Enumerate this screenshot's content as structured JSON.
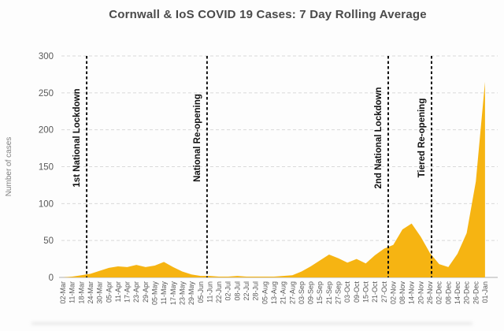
{
  "title": "Cornwall & IoS COVID 19 Cases: 7 Day Rolling Average",
  "colors": {
    "area": "#F6B412",
    "grid": "#D9D9D9",
    "axis": "#BFBFBF",
    "tick_text": "#595959",
    "axis_label_text": "#808080",
    "annotation": "#111111",
    "title_text": "#4A4A4A",
    "background": "#FDFDFD"
  },
  "chart_data": {
    "type": "area",
    "title": "Cornwall & IoS COVID 19 Cases: 7 Day Rolling Average",
    "xlabel": "",
    "ylabel": "Number of cases",
    "ylim": [
      0,
      300
    ],
    "yticks": [
      0,
      50,
      100,
      150,
      200,
      250,
      300
    ],
    "grid": "horizontal dashed gridlines at every 50",
    "legend": "none",
    "categories": [
      "02-Mar",
      "11-Mar",
      "18-Mar",
      "24-Mar",
      "30-Mar",
      "05-Apr",
      "11-Apr",
      "17-Apr",
      "23-Apr",
      "29-Apr",
      "05-May",
      "11-May",
      "17-May",
      "23-May",
      "29-May",
      "05-Jun",
      "11-Jun",
      "22-Jun",
      "02-Jul",
      "08-Jul",
      "22-Jul",
      "28-Jul",
      "05-Aug",
      "13-Aug",
      "21-Aug",
      "27-Aug",
      "03-Sep",
      "09-Sep",
      "15-Sep",
      "21-Sep",
      "27-Sep",
      "03-Oct",
      "09-Oct",
      "15-Oct",
      "21-Oct",
      "27-Oct",
      "02-Nov",
      "08-Nov",
      "14-Nov",
      "20-Nov",
      "26-Nov",
      "02-Dec",
      "08-Dec",
      "14-Dec",
      "20-Dec",
      "26-Dec",
      "01-Jan"
    ],
    "values": [
      0,
      1,
      3,
      5,
      9,
      13,
      15,
      14,
      17,
      14,
      16,
      21,
      14,
      8,
      4,
      2,
      2,
      1,
      1,
      2,
      1,
      1,
      1,
      1,
      2,
      3,
      8,
      15,
      23,
      31,
      26,
      20,
      25,
      19,
      30,
      39,
      44,
      65,
      73,
      55,
      33,
      18,
      14,
      32,
      60,
      130,
      265
    ],
    "annotations": [
      {
        "label": "1st National Lockdown",
        "at_index": 2.58
      },
      {
        "label": "National Re-opening",
        "at_index": 15.7
      },
      {
        "label": "2nd National Lockdown",
        "at_index": 35.45
      },
      {
        "label": "Tiered Re-opening",
        "at_index": 40.17
      }
    ]
  }
}
